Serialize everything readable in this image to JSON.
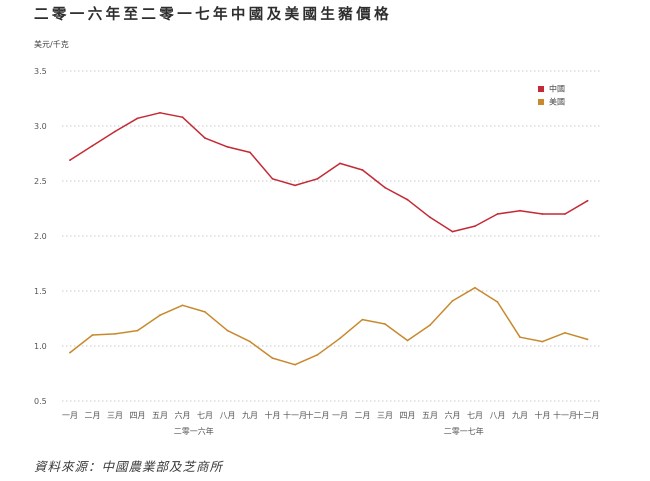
{
  "title": "二零一六年至二零一七年中國及美國生豬價格",
  "source": "資料來源：中國農業部及芝商所",
  "chart_data": {
    "type": "line",
    "title": "二零一六年至二零一七年中國及美國生豬價格",
    "ylabel": "美元/千克",
    "xlabel": "",
    "ylim": [
      0.5,
      3.5
    ],
    "yticks": [
      "3.5",
      "3.0",
      "2.5",
      "2.0",
      "1.5",
      "1.0",
      "0.5"
    ],
    "grid": true,
    "legend_position": "top-right",
    "categories": [
      "一月",
      "二月",
      "三月",
      "四月",
      "五月",
      "六月",
      "七月",
      "八月",
      "九月",
      "十月",
      "十一月",
      "十二月",
      "一月",
      "二月",
      "三月",
      "四月",
      "五月",
      "六月",
      "七月",
      "八月",
      "九月",
      "十月",
      "十一月",
      "十二月"
    ],
    "year_groups": [
      {
        "label": "二零一六年",
        "start": 0,
        "end": 11
      },
      {
        "label": "二零一七年",
        "start": 12,
        "end": 23
      }
    ],
    "series": [
      {
        "name": "中國",
        "color": "#c42a35",
        "values": [
          2.69,
          2.82,
          2.95,
          3.07,
          3.12,
          3.08,
          2.89,
          2.81,
          2.76,
          2.52,
          2.46,
          2.52,
          2.66,
          2.6,
          2.44,
          2.33,
          2.17,
          2.04,
          2.09,
          2.2,
          2.23,
          2.2,
          2.2,
          2.32
        ]
      },
      {
        "name": "美國",
        "color": "#c8892e",
        "values": [
          0.94,
          1.1,
          1.11,
          1.14,
          1.28,
          1.37,
          1.31,
          1.14,
          1.04,
          0.89,
          0.83,
          0.92,
          1.07,
          1.24,
          1.2,
          1.05,
          1.19,
          1.41,
          1.53,
          1.4,
          1.08,
          1.04,
          1.12,
          1.06
        ]
      }
    ]
  }
}
